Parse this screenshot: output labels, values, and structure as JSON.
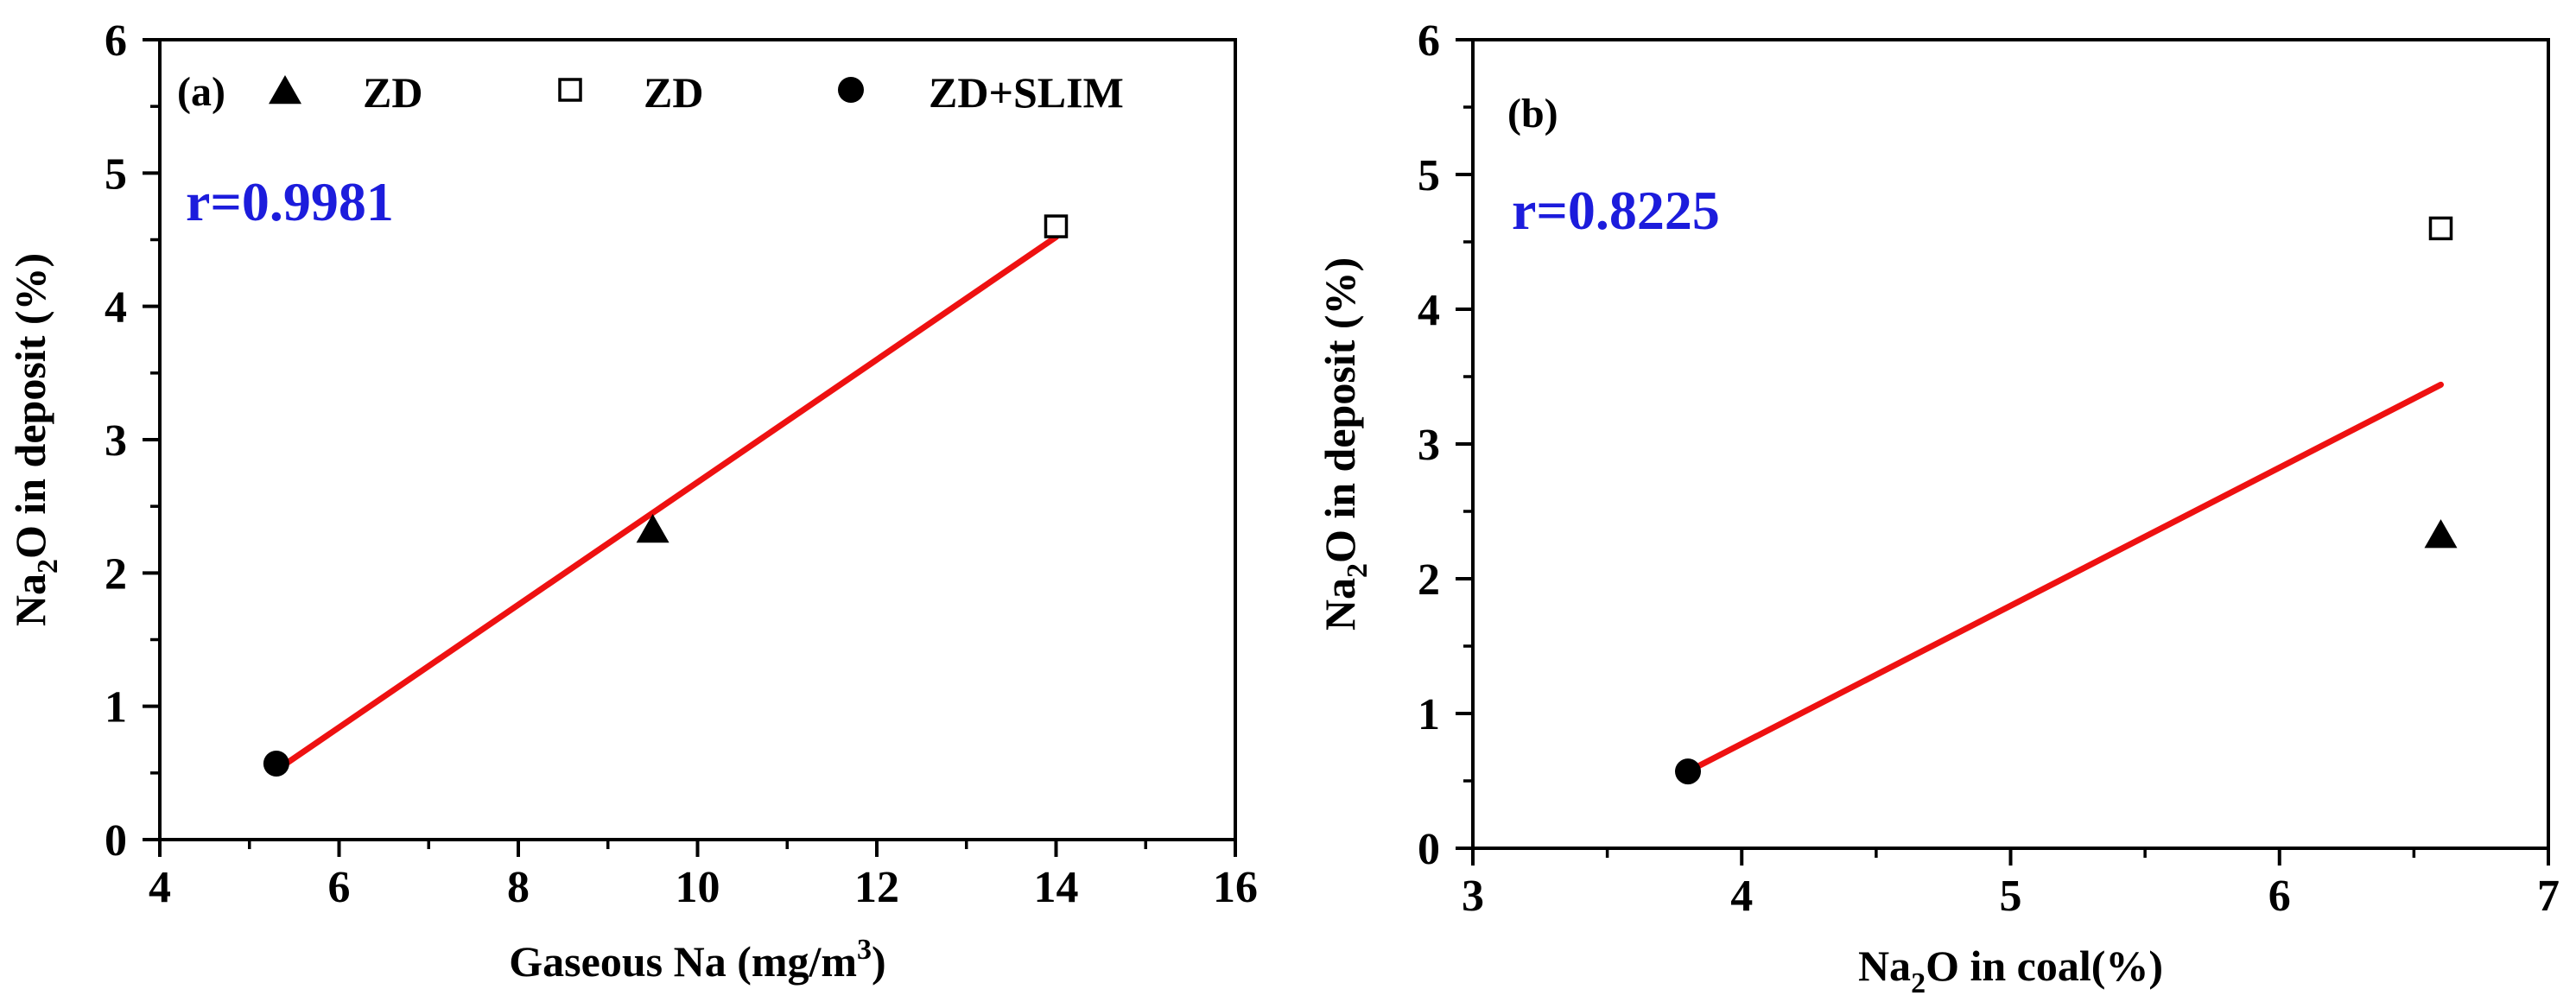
{
  "colors": {
    "axis": "#000000",
    "fit_line": "#ee1111",
    "r_text": "#1c1cdc",
    "text": "#000000"
  },
  "chart_data": [
    {
      "type": "scatter",
      "panel_label": "(a)",
      "xlabel_text": "Gaseous Na (mg/m",
      "xlabel_sup": "3",
      "xlabel_close": ")",
      "ylabel_pre": "Na",
      "ylabel_sub": "2",
      "ylabel_post": "O in deposit (%)",
      "xlim": [
        4,
        16
      ],
      "ylim": [
        0,
        6
      ],
      "xticks": [
        4,
        6,
        8,
        10,
        12,
        14,
        16
      ],
      "yticks": [
        0,
        1,
        2,
        3,
        4,
        5,
        6
      ],
      "correlation": "r=0.9981",
      "series": [
        {
          "name": "ZD",
          "marker": "triangle",
          "points": [
            [
              9.5,
              2.32
            ]
          ]
        },
        {
          "name": "ZD",
          "marker": "square-open",
          "points": [
            [
              14.0,
              4.6
            ]
          ]
        },
        {
          "name": "ZD+SLIM",
          "marker": "circle",
          "points": [
            [
              5.3,
              0.57
            ]
          ]
        }
      ],
      "fit_line": [
        [
          5.3,
          0.52
        ],
        [
          14.0,
          4.52
        ]
      ]
    },
    {
      "type": "scatter",
      "panel_label": "(b)",
      "xlabel_pre": "Na",
      "xlabel_sub": "2",
      "xlabel_post": "O in coal(%)",
      "ylabel_pre": "Na",
      "ylabel_sub": "2",
      "ylabel_post": "O in deposit (%)",
      "xlim": [
        3,
        7
      ],
      "ylim": [
        0,
        6
      ],
      "xticks": [
        3,
        4,
        5,
        6,
        7
      ],
      "yticks": [
        0,
        1,
        2,
        3,
        4,
        5,
        6
      ],
      "correlation": "r=0.8225",
      "series": [
        {
          "name": "ZD",
          "marker": "triangle",
          "points": [
            [
              6.6,
              2.32
            ]
          ]
        },
        {
          "name": "ZD",
          "marker": "square-open",
          "points": [
            [
              6.6,
              4.6
            ]
          ]
        },
        {
          "name": "ZD+SLIM",
          "marker": "circle",
          "points": [
            [
              3.8,
              0.57
            ]
          ]
        }
      ],
      "fit_line": [
        [
          3.8,
          0.57
        ],
        [
          6.6,
          3.44
        ]
      ]
    }
  ]
}
